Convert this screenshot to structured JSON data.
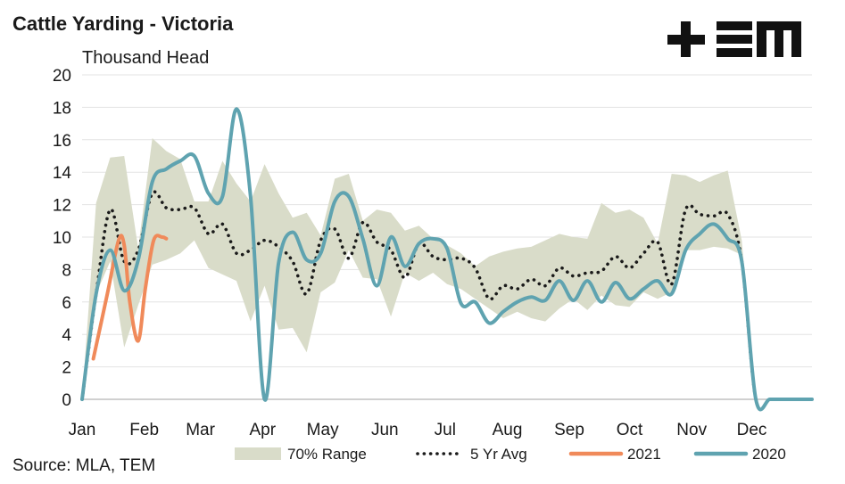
{
  "title": "Cattle Yarding - Victoria",
  "source": "Source: MLA, TEM",
  "logo": {
    "icon": "tem-logo-icon",
    "color": "#111111"
  },
  "chart_data": {
    "type": "line",
    "title": "Cattle Yarding - Victoria",
    "ylabel": "Thousand Head",
    "xlabel": "",
    "ylim": [
      0,
      20
    ],
    "yticks": [
      0,
      2,
      4,
      6,
      8,
      10,
      12,
      14,
      16,
      18,
      20
    ],
    "x_ticks": [
      "Jan",
      "Feb",
      "Mar",
      "Apr",
      "May",
      "Jun",
      "Jul",
      "Aug",
      "Sep",
      "Oct",
      "Nov",
      "Dec"
    ],
    "x_unit": "week of year",
    "x_domain": [
      1,
      53
    ],
    "grid": "horizontal",
    "legend_position": "bottom",
    "colors": {
      "range": "#d9dcc9",
      "avg": "#1a1a1a",
      "y2021": "#f08a5a",
      "y2020": "#5fa3b0"
    },
    "series": [
      {
        "name": "70% Range",
        "kind": "band",
        "x": [
          1,
          2,
          3,
          4,
          5,
          6,
          7,
          8,
          9,
          10,
          11,
          12,
          13,
          14,
          15,
          16,
          17,
          18,
          19,
          20,
          21,
          22,
          23,
          24,
          25,
          26,
          27,
          28,
          29,
          30,
          31,
          32,
          33,
          34,
          35,
          36,
          37,
          38,
          39,
          40,
          41,
          42,
          43,
          44,
          45,
          46,
          47,
          48,
          49,
          50,
          51,
          52,
          53
        ],
        "low": [
          0,
          6.5,
          8.5,
          3.2,
          5.8,
          8.3,
          8.6,
          9.0,
          9.8,
          8.1,
          7.7,
          7.3,
          4.8,
          7.0,
          4.3,
          4.4,
          2.9,
          6.6,
          7.2,
          9.2,
          7.5,
          7.4,
          5.1,
          7.8,
          7.3,
          7.8,
          7.1,
          6.8,
          6.2,
          5.6,
          5.0,
          5.4,
          5.0,
          4.8,
          5.6,
          6.2,
          5.5,
          6.4,
          5.8,
          5.7,
          6.6,
          6.2,
          6.6,
          9.2,
          9.2,
          9.4,
          9.3,
          8.9,
          0,
          0,
          0,
          0,
          0
        ],
        "high": [
          0,
          12.1,
          14.9,
          15.0,
          9.3,
          16.1,
          15.3,
          14.8,
          12.2,
          12.2,
          14.7,
          13.3,
          12.2,
          14.5,
          12.7,
          11.2,
          11.5,
          10.1,
          13.6,
          13.9,
          11.0,
          11.7,
          11.5,
          10.4,
          10.7,
          9.9,
          9.5,
          9.0,
          8.2,
          8.8,
          9.1,
          9.3,
          9.4,
          9.8,
          10.2,
          10.0,
          9.9,
          12.1,
          11.5,
          11.7,
          11.2,
          9.6,
          13.9,
          13.8,
          13.4,
          13.8,
          14.1,
          9.8,
          0,
          0,
          0,
          0,
          0
        ]
      },
      {
        "name": "5 Yr Avg",
        "kind": "dotted",
        "x": [
          1,
          2,
          3,
          4,
          5,
          6,
          7,
          8,
          9,
          10,
          11,
          12,
          13,
          14,
          15,
          16,
          17,
          18,
          19,
          20,
          21,
          22,
          23,
          24,
          25,
          26,
          27,
          28,
          29,
          30,
          31,
          32,
          33,
          34,
          35,
          36,
          37,
          38,
          39,
          40,
          41,
          42,
          43,
          44,
          45,
          46,
          47,
          48,
          49,
          50,
          51,
          52,
          53
        ],
        "y": [
          0,
          6.5,
          11.7,
          8.5,
          9.2,
          12.7,
          11.8,
          11.7,
          11.8,
          10.2,
          10.8,
          9.0,
          9.2,
          9.8,
          9.4,
          8.5,
          6.5,
          9.8,
          10.5,
          8.7,
          10.9,
          9.7,
          9.2,
          7.5,
          9.6,
          8.8,
          8.6,
          8.7,
          8.1,
          6.2,
          7.0,
          6.8,
          7.4,
          7.0,
          8.1,
          7.6,
          7.8,
          7.9,
          8.8,
          8.1,
          9.0,
          9.7,
          7.1,
          11.7,
          11.4,
          11.3,
          11.4,
          8.5,
          0.0,
          0.0,
          0.0,
          0.0,
          0.0
        ]
      },
      {
        "name": "2021",
        "kind": "line",
        "x": [
          1.8,
          2.8,
          3.6,
          4.0,
          4.4,
          5.0,
          5.5,
          6.1,
          6.7,
          7.0
        ],
        "y": [
          2.5,
          6.5,
          9.8,
          9.5,
          6.0,
          3.6,
          6.8,
          9.8,
          10.0,
          9.9
        ]
      },
      {
        "name": "2020",
        "kind": "line",
        "x": [
          1,
          2,
          3,
          4,
          5,
          6,
          7,
          8,
          9,
          10,
          11,
          12,
          13,
          14,
          15,
          16,
          17,
          18,
          19,
          20,
          21,
          22,
          23,
          24,
          25,
          26,
          27,
          28,
          29,
          30,
          31,
          32,
          33,
          34,
          35,
          36,
          37,
          38,
          39,
          40,
          41,
          42,
          43,
          44,
          45,
          46,
          47,
          48,
          49,
          50,
          51,
          52,
          53
        ],
        "y": [
          0,
          6.5,
          9.2,
          6.7,
          8.6,
          13.4,
          14.2,
          14.7,
          15.0,
          12.7,
          12.5,
          17.9,
          12.5,
          0.0,
          8.4,
          10.3,
          8.6,
          9.0,
          12.2,
          12.5,
          9.9,
          7.0,
          10.0,
          8.2,
          9.6,
          9.9,
          9.3,
          5.9,
          6.0,
          4.7,
          5.4,
          6.0,
          6.3,
          6.1,
          7.3,
          6.1,
          7.3,
          6.0,
          7.2,
          6.2,
          6.8,
          7.3,
          6.5,
          9.2,
          10.2,
          10.8,
          9.9,
          8.5,
          0,
          0,
          0,
          0,
          0
        ]
      }
    ]
  }
}
